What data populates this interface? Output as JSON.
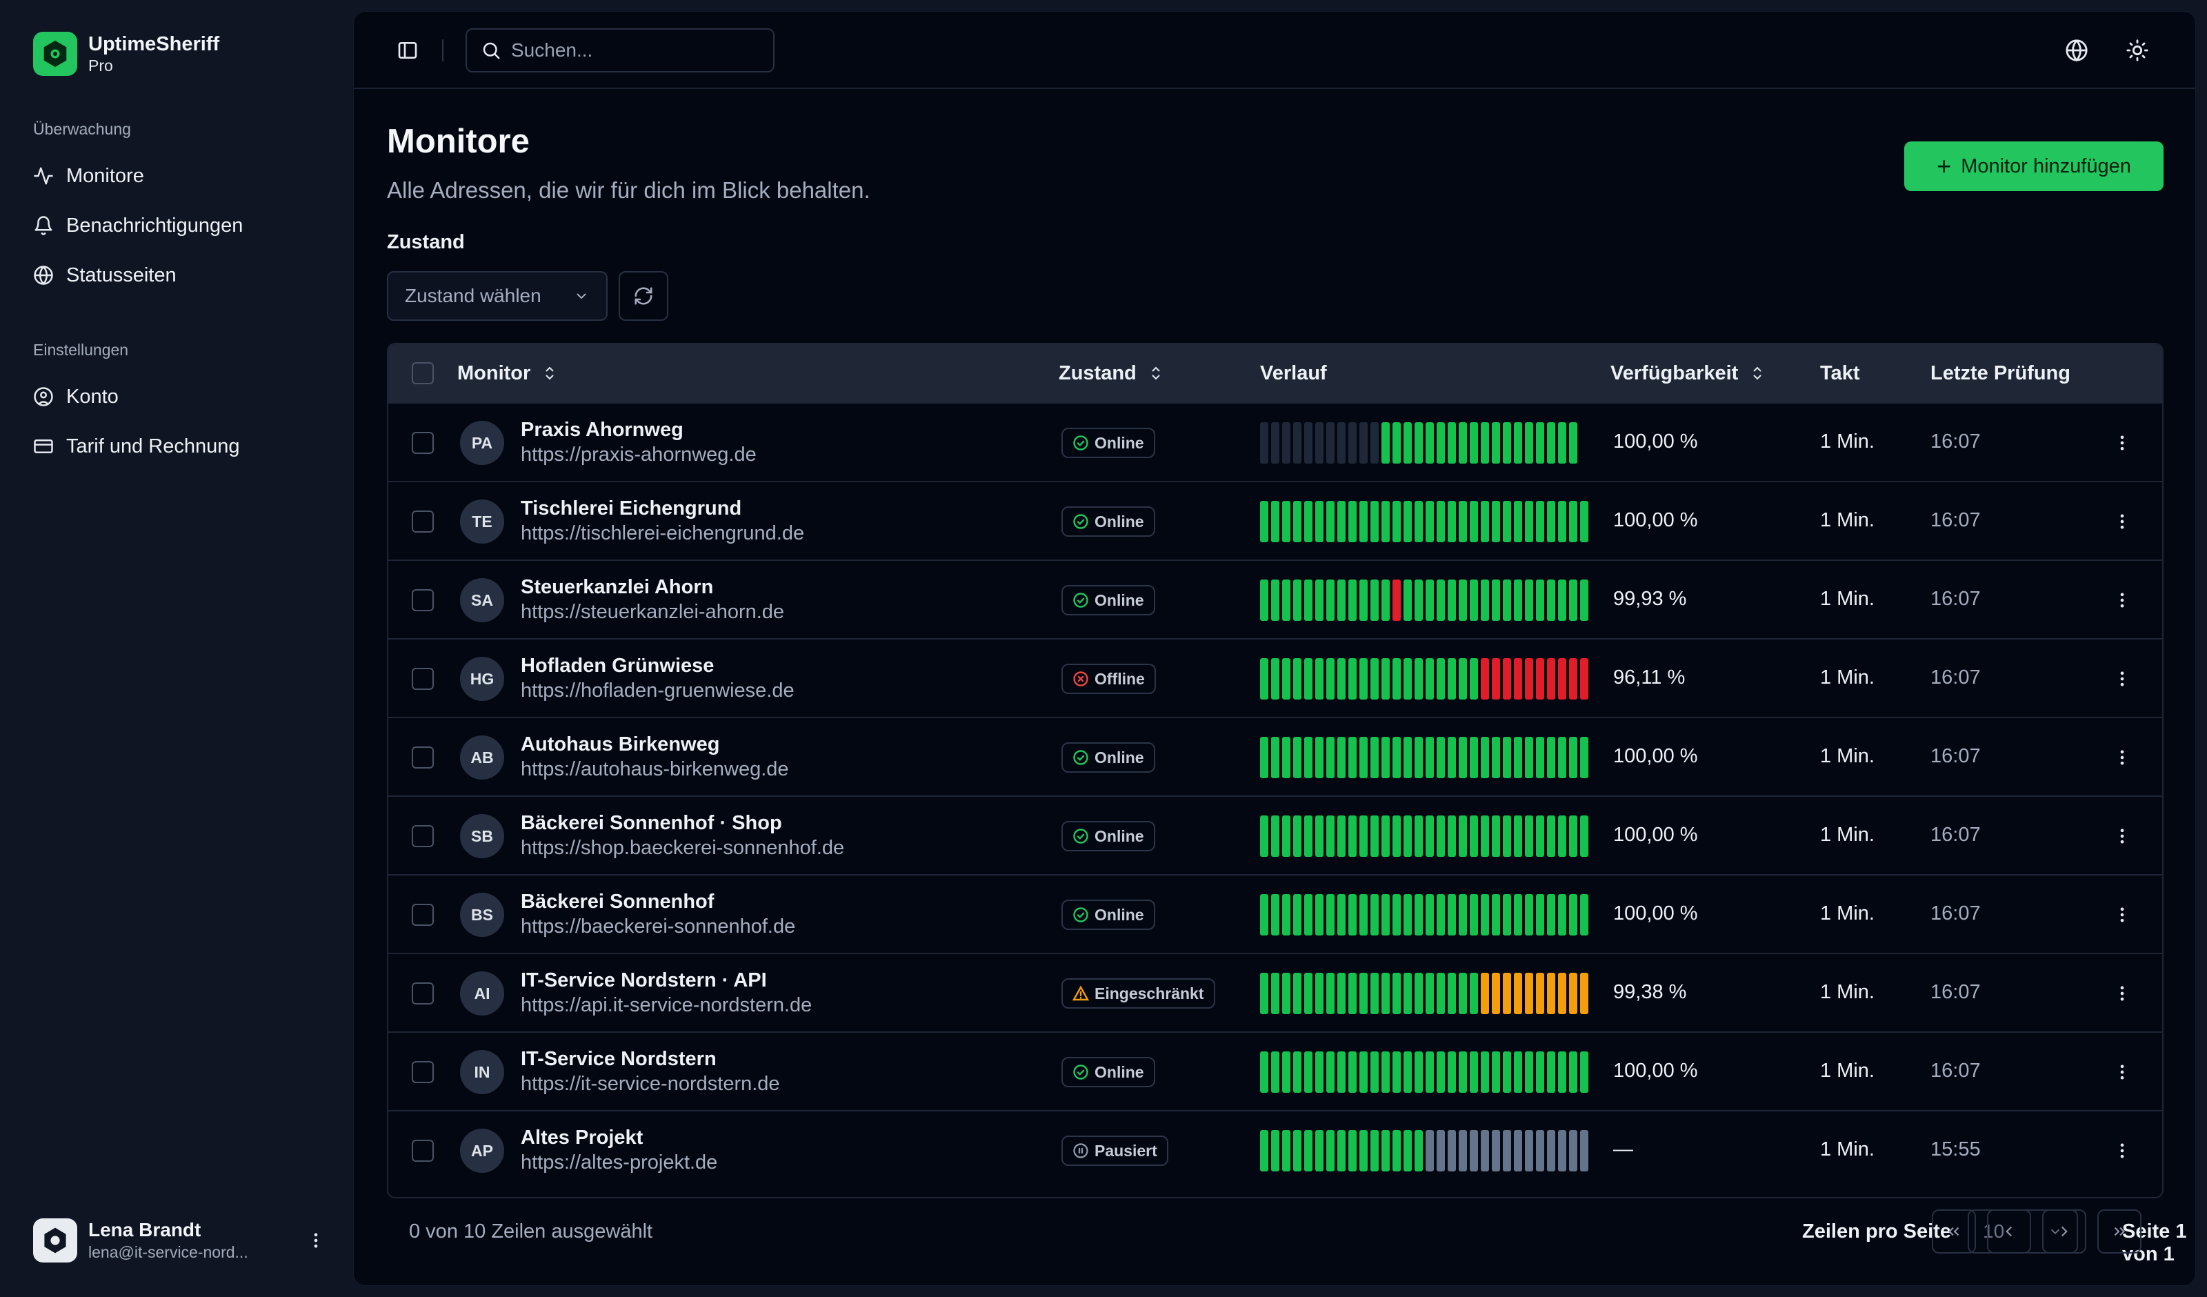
{
  "app": {
    "name": "UptimeSheriff",
    "plan": "Pro"
  },
  "sidebar": {
    "section_monitoring": "Überwachung",
    "items": [
      {
        "label": "Monitore",
        "icon": "activity-icon"
      },
      {
        "label": "Benachrichtigungen",
        "icon": "bell-icon"
      },
      {
        "label": "Statusseiten",
        "icon": "globe-icon"
      }
    ],
    "section_settings": "Einstellungen",
    "settings_items": [
      {
        "label": "Konto",
        "icon": "user-circle-icon"
      },
      {
        "label": "Tarif und Rechnung",
        "icon": "credit-card-icon"
      }
    ],
    "user": {
      "name": "Lena Brandt",
      "email": "lena@it-service-nord..."
    }
  },
  "topbar": {
    "search_placeholder": "Suchen..."
  },
  "page": {
    "title": "Monitore",
    "subtitle": "Alle Adressen, die wir für dich im Blick behalten.",
    "add_button": "Monitor hinzufügen",
    "filter_label": "Zustand",
    "filter_placeholder": "Zustand wählen"
  },
  "colors": {
    "up": "#16c24e",
    "down": "#e11d2a",
    "degraded": "#f59e0b",
    "paused": "#64748b",
    "empty": "#1f2838",
    "accent": "#22c55e"
  },
  "table": {
    "headers": {
      "monitor": "Monitor",
      "status": "Zustand",
      "history": "Verlauf",
      "availability": "Verfügbarkeit",
      "interval": "Takt",
      "last_check": "Letzte Prüfung"
    },
    "rows": [
      {
        "initials": "PA",
        "name": "Praxis Ahornweg",
        "url": "https://praxis-ahornweg.de",
        "status": "Online",
        "status_type": "online",
        "history": "eeeeeeeeeeeuuuuuuuuuuuuuuuuuu",
        "availability": "100,00 %",
        "interval": "1 Min.",
        "last_check": "16:07"
      },
      {
        "initials": "TE",
        "name": "Tischlerei Eichengrund",
        "url": "https://tischlerei-eichengrund.de",
        "status": "Online",
        "status_type": "online",
        "history": "uuuuuuuuuuuuuuuuuuuuuuuuuuuuuu",
        "availability": "100,00 %",
        "interval": "1 Min.",
        "last_check": "16:07"
      },
      {
        "initials": "SA",
        "name": "Steuerkanzlei Ahorn",
        "url": "https://steuerkanzlei-ahorn.de",
        "status": "Online",
        "status_type": "online",
        "history": "uuuuuuuuuuuuduuuuuuuuuuuuuuuuu",
        "availability": "99,93 %",
        "interval": "1 Min.",
        "last_check": "16:07"
      },
      {
        "initials": "HG",
        "name": "Hofladen Grünwiese",
        "url": "https://hofladen-gruenwiese.de",
        "status": "Offline",
        "status_type": "offline",
        "history": "uuuuuuuuuuuuuuuuuuuudddddddddd",
        "availability": "96,11 %",
        "interval": "1 Min.",
        "last_check": "16:07"
      },
      {
        "initials": "AB",
        "name": "Autohaus Birkenweg",
        "url": "https://autohaus-birkenweg.de",
        "status": "Online",
        "status_type": "online",
        "history": "uuuuuuuuuuuuuuuuuuuuuuuuuuuuuu",
        "availability": "100,00 %",
        "interval": "1 Min.",
        "last_check": "16:07"
      },
      {
        "initials": "SB",
        "name": "Bäckerei Sonnenhof · Shop",
        "url": "https://shop.baeckerei-sonnenhof.de",
        "status": "Online",
        "status_type": "online",
        "history": "uuuuuuuuuuuuuuuuuuuuuuuuuuuuuu",
        "availability": "100,00 %",
        "interval": "1 Min.",
        "last_check": "16:07"
      },
      {
        "initials": "BS",
        "name": "Bäckerei Sonnenhof",
        "url": "https://baeckerei-sonnenhof.de",
        "status": "Online",
        "status_type": "online",
        "history": "uuuuuuuuuuuuuuuuuuuuuuuuuuuuuu",
        "availability": "100,00 %",
        "interval": "1 Min.",
        "last_check": "16:07"
      },
      {
        "initials": "AI",
        "name": "IT-Service Nordstern · API",
        "url": "https://api.it-service-nordstern.de",
        "status": "Eingeschränkt",
        "status_type": "degraded",
        "history": "uuuuuuuuuuuuuuuuuuuuwwwwwwwwww",
        "availability": "99,38 %",
        "interval": "1 Min.",
        "last_check": "16:07"
      },
      {
        "initials": "IN",
        "name": "IT-Service Nordstern",
        "url": "https://it-service-nordstern.de",
        "status": "Online",
        "status_type": "online",
        "history": "uuuuuuuuuuuuuuuuuuuuuuuuuuuuuu",
        "availability": "100,00 %",
        "interval": "1 Min.",
        "last_check": "16:07"
      },
      {
        "initials": "AP",
        "name": "Altes Projekt",
        "url": "https://altes-projekt.de",
        "status": "Pausiert",
        "status_type": "paused",
        "history": "uuuuuuuuuuuuuuuppppppppppppppp",
        "availability": "—",
        "interval": "1 Min.",
        "last_check": "15:55"
      }
    ]
  },
  "footer": {
    "selection": "0 von 10 Zeilen ausgewählt",
    "rows_per_page_label": "Zeilen pro Seite",
    "rows_per_page": "10",
    "page_info": "Seite 1 von 1"
  }
}
